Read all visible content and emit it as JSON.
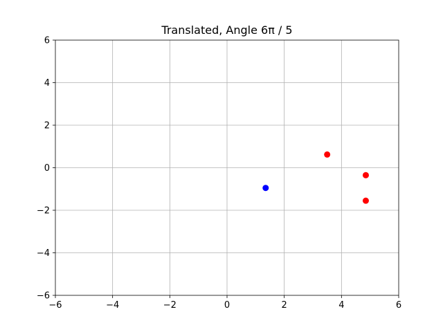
{
  "chart_data": {
    "type": "scatter",
    "title": "Translated, Angle 6π / 5",
    "xlabel": "",
    "ylabel": "",
    "xlim": [
      -6,
      6
    ],
    "ylim": [
      -6,
      6
    ],
    "xticks": [
      -6,
      -4,
      -2,
      0,
      2,
      4,
      6
    ],
    "yticks": [
      -6,
      -4,
      -2,
      0,
      2,
      4,
      6
    ],
    "xtick_labels": [
      "−6",
      "−4",
      "−2",
      "0",
      "2",
      "4",
      "6"
    ],
    "ytick_labels": [
      "−6",
      "−4",
      "−2",
      "0",
      "2",
      "4",
      "6"
    ],
    "grid": true,
    "series": [
      {
        "color": "#0000ff",
        "points": [
          {
            "x": 1.35,
            "y": -0.95
          }
        ]
      },
      {
        "color": "#ff0000",
        "points": [
          {
            "x": 3.5,
            "y": 0.62
          },
          {
            "x": 4.85,
            "y": -0.35
          },
          {
            "x": 4.85,
            "y": -1.55
          }
        ]
      }
    ]
  }
}
